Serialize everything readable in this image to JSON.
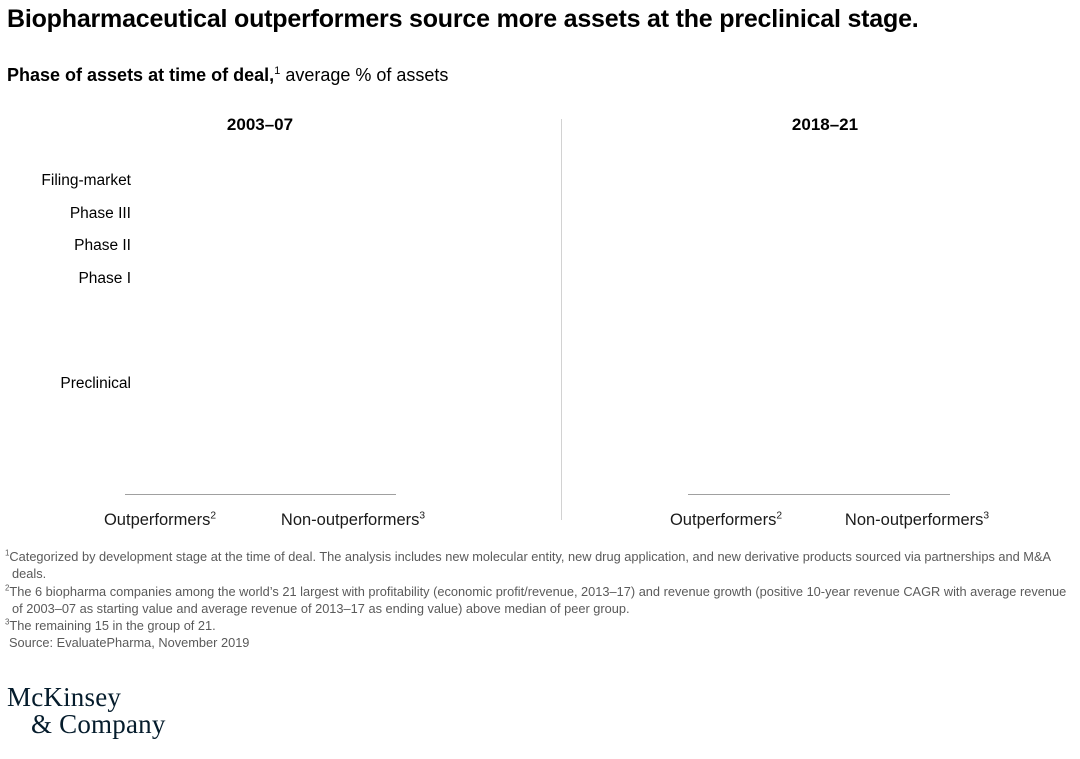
{
  "title": "Biopharmaceutical outperformers source more assets at the preclinical stage.",
  "subtitle": {
    "bold": "Phase of assets at time of deal,",
    "sup": "1",
    "rest": " average % of assets"
  },
  "panels": {
    "left": {
      "header": "2003–07",
      "groups": [
        {
          "label": "Outperformers",
          "sup": "2"
        },
        {
          "label": "Non-outperformers",
          "sup": "3"
        }
      ]
    },
    "right": {
      "header": "2018–21",
      "groups": [
        {
          "label": "Outperformers",
          "sup": "2"
        },
        {
          "label": "Non-outperformers",
          "sup": "3"
        }
      ]
    }
  },
  "y_axis": {
    "labels": [
      "Filing-market",
      "Phase III",
      "Phase II",
      "Phase I",
      "Preclinical"
    ]
  },
  "footnotes": [
    {
      "sup": "1",
      "text": "Categorized by development stage at the time of deal. The analysis includes new molecular entity, new drug application, and new derivative products sourced via partnerships and M&A deals."
    },
    {
      "sup": "2",
      "text": "The 6 biopharma companies among the world’s 21 largest with profitability (economic profit/revenue, 2013–17) and revenue growth (positive 10-year revenue CAGR with average revenue of 2003–07 as starting value and average revenue of 2013–17 as ending value) above median of peer group."
    },
    {
      "sup": "3",
      "text": "The remaining 15 in the group of 21."
    }
  ],
  "source": "Source: EvaluatePharma, November 2019",
  "logo": {
    "line1": "McKinsey",
    "line2": "& Company"
  },
  "colors": {
    "divider": "#d2d2d2",
    "baseline": "#a0a0a0",
    "footnote_text": "#5a5a5a",
    "logo_navy": "#051c2c"
  },
  "chart_data": {
    "type": "bar",
    "title": "Phase of assets at time of deal,¹ average % of assets",
    "categories": [
      "Filing-market",
      "Phase III",
      "Phase II",
      "Phase I",
      "Preclinical"
    ],
    "panels": [
      {
        "label": "2003–07",
        "groups": [
          "Outperformers²",
          "Non-outperformers³"
        ]
      },
      {
        "label": "2018–21",
        "groups": [
          "Outperformers²",
          "Non-outperformers³"
        ]
      }
    ],
    "values_rendered": false,
    "series": []
  }
}
